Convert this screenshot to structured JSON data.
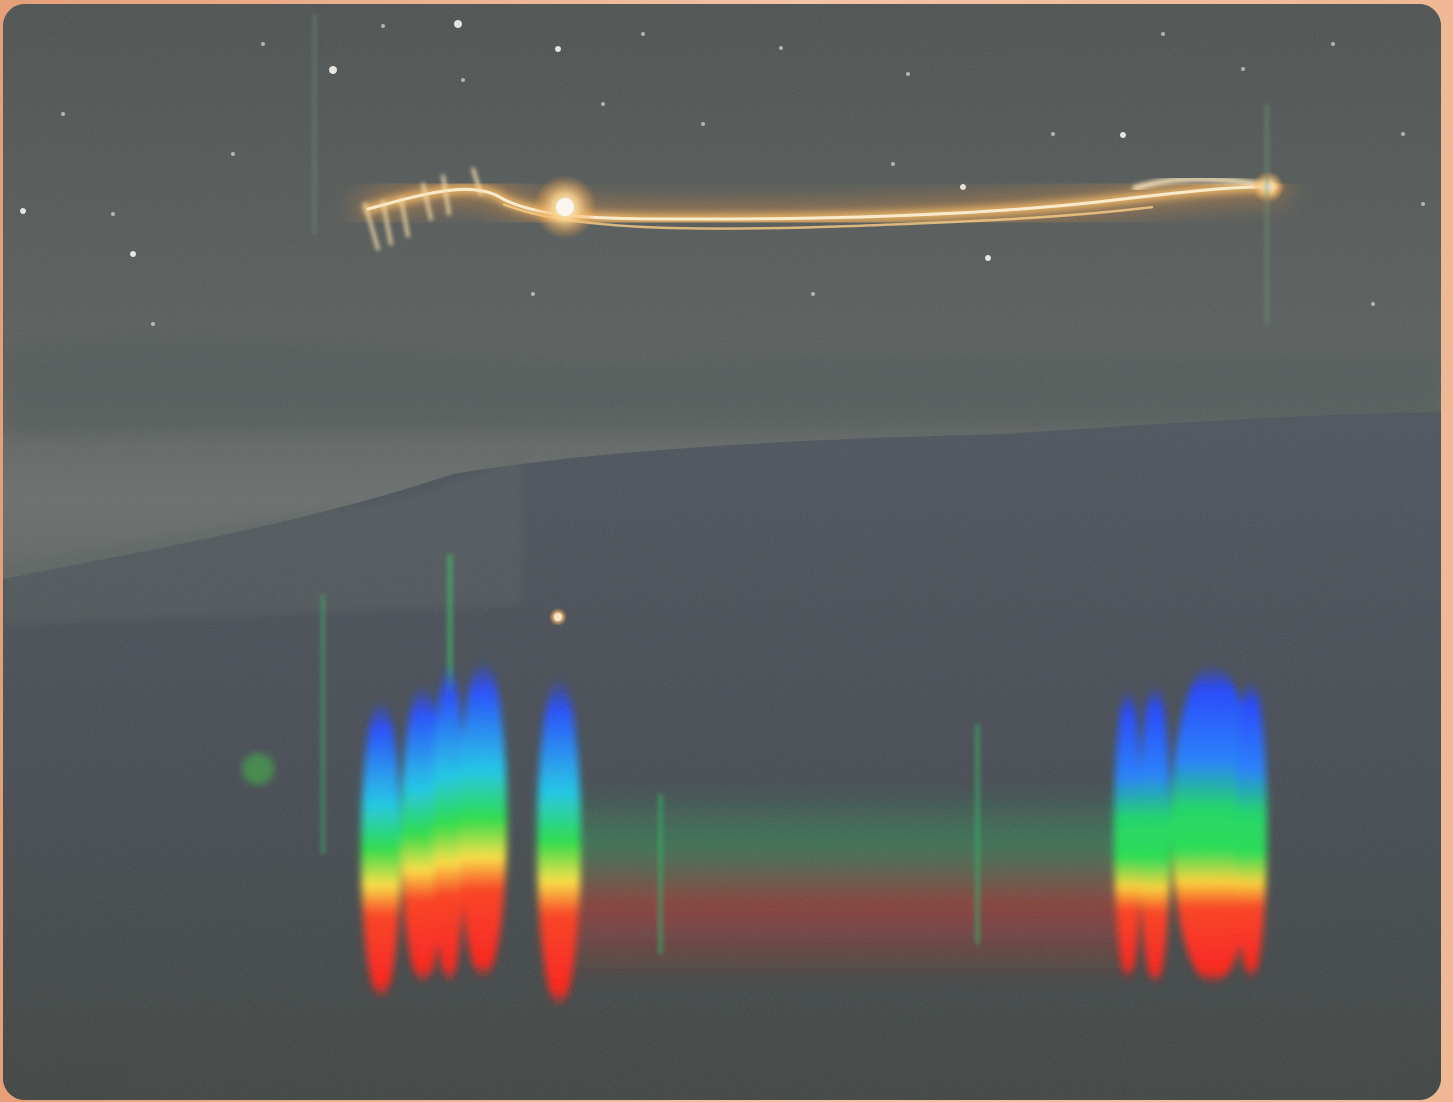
{
  "photo": {
    "subject_icon": "night-sky-light-trail-and-spectrum-photo-icon",
    "colors": {
      "sky_top": "#4b504d",
      "sky_mid": "#5a605d",
      "haze": "#6a706b",
      "ridge": "#444a50",
      "ground_bottom": "#3a3f3b",
      "trail_core": "#fff4d8",
      "trail_glow": "#ffb24a",
      "spectrum_red": "#ff2a14",
      "spectrum_yellow": "#ffe23a",
      "spectrum_green": "#1fe04a",
      "spectrum_blue": "#1846ff",
      "frame": "#e9a37a"
    }
  }
}
